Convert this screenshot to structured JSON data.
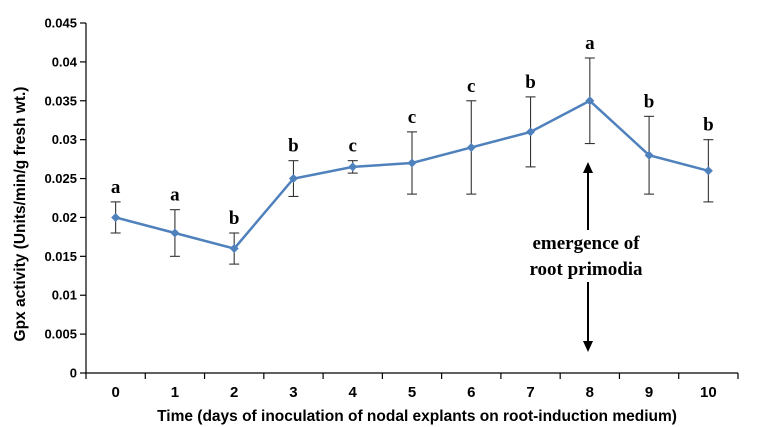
{
  "chart_data": {
    "type": "line",
    "title": "",
    "xlabel": "Time (days of inoculation of nodal explants on root-induction medium)",
    "ylabel": "Gpx activity (Units/min/g fresh wt.)",
    "x": [
      0,
      1,
      2,
      3,
      4,
      5,
      6,
      7,
      8,
      9,
      10
    ],
    "xlim": [
      -0.5,
      10.5
    ],
    "ylim": [
      0,
      0.045
    ],
    "yticks": [
      "0",
      "0.005",
      "0.01",
      "0.015",
      "0.02",
      "0.025",
      "0.03",
      "0.035",
      "0.04",
      "0.045"
    ],
    "xticks": [
      "0",
      "1",
      "2",
      "3",
      "4",
      "5",
      "6",
      "7",
      "8",
      "9",
      "10"
    ],
    "grid": false,
    "series": [
      {
        "values": [
          0.02,
          0.018,
          0.016,
          0.025,
          0.0265,
          0.027,
          0.029,
          0.031,
          0.035,
          0.028,
          0.026
        ],
        "error": [
          0.002,
          0.003,
          0.002,
          0.0023,
          0.0008,
          0.004,
          0.006,
          0.0045,
          0.0055,
          0.005,
          0.004
        ],
        "significance": [
          "a",
          "a",
          "b",
          "b",
          "c",
          "c",
          "c",
          "b",
          "a",
          "b",
          "b"
        ],
        "color": "#4f81bd"
      }
    ],
    "annotation": {
      "lines": [
        "emergence of",
        "root primodia"
      ],
      "x": 8
    }
  }
}
